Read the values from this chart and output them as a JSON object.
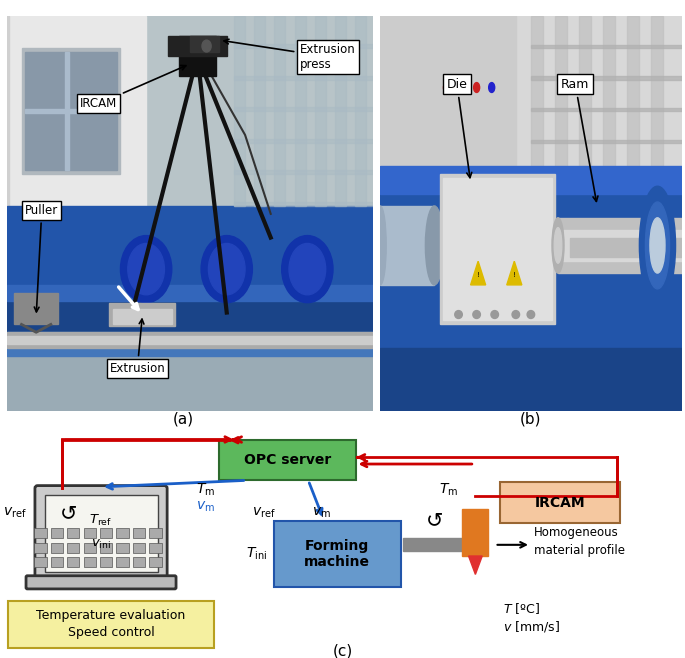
{
  "fig_width": 6.85,
  "fig_height": 6.58,
  "dpi": 100,
  "label_a": "(a)",
  "label_b": "(b)",
  "label_c": "(c)",
  "red_arrow_color": "#cc0000",
  "blue_arrow_color": "#1a5fc8",
  "opc_facecolor": "#5cb85c",
  "opc_edgecolor": "#2d6a2d",
  "forming_facecolor": "#6699cc",
  "forming_edgecolor": "#2255aa",
  "temp_facecolor": "#f5f0a0",
  "temp_edgecolor": "#b8a020",
  "ircam_facecolor": "#f5c8a0",
  "ircam_edgecolor": "#996633",
  "ircam_sensor_color": "#e07820",
  "gray_bar_color": "#888888",
  "red_tri_color": "#dd2222"
}
